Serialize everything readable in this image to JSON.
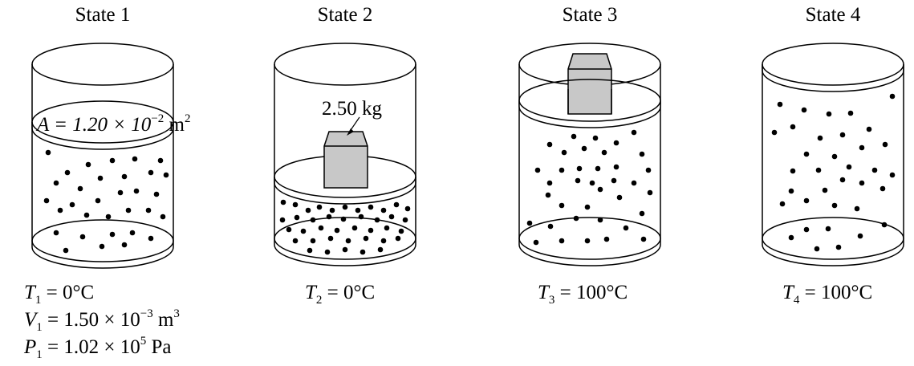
{
  "states": [
    {
      "title": "State 1",
      "area_label": {
        "text": "A = 1.20 × 10",
        "exp": "−2",
        "unit": " m",
        "unit_exp": "2"
      },
      "conditions": [
        {
          "sym": "T",
          "sub": "1",
          "value": " = 0°C",
          "exp": "",
          "tail": ""
        },
        {
          "sym": "V",
          "sub": "1",
          "value": " = 1.50 × 10",
          "exp": "−3",
          "tail": " m",
          "tail_exp": "3"
        },
        {
          "sym": "P",
          "sub": "1",
          "value": " = 1.02 × 10",
          "exp": "5",
          "tail": " Pa",
          "tail_exp": ""
        }
      ]
    },
    {
      "title": "State 2",
      "mass_label": "2.50 kg",
      "conditions": [
        {
          "sym": "T",
          "sub": "2",
          "value": " = 0°C",
          "exp": "",
          "tail": ""
        }
      ]
    },
    {
      "title": "State 3",
      "conditions": [
        {
          "sym": "T",
          "sub": "3",
          "value": " = 100°C",
          "exp": "",
          "tail": ""
        }
      ]
    },
    {
      "title": "State 4",
      "conditions": [
        {
          "sym": "T",
          "sub": "4",
          "value": " = 100°C",
          "exp": "",
          "tail": ""
        }
      ]
    }
  ],
  "colors": {
    "line": "#000000",
    "block": "#c8c8c8",
    "background": "#ffffff"
  }
}
